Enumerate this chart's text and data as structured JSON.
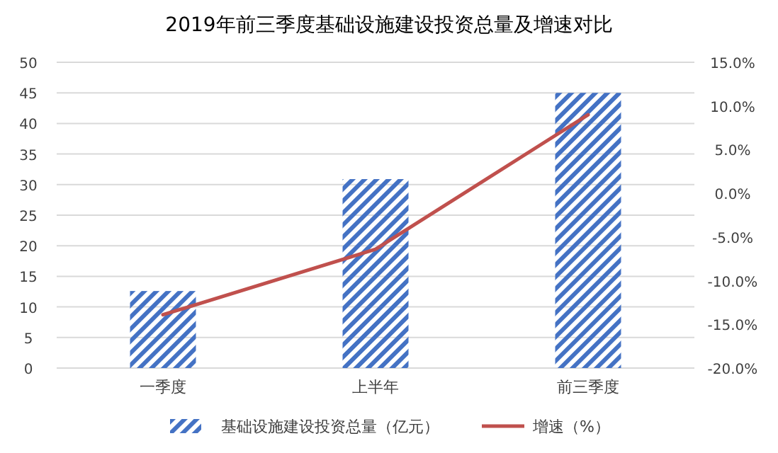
{
  "chart_data": {
    "type": "bar",
    "title": "2019年前三季度基础设施建设投资总量及增速对比",
    "categories": [
      "一季度",
      "上半年",
      "前三季度"
    ],
    "series": [
      {
        "name": "基础设施建设投资总量（亿元）",
        "color": "#4472c4",
        "values": [
          12.6,
          30.9,
          45.0
        ]
      },
      {
        "name": "增速（%）",
        "type": "line",
        "axis": "y2",
        "color": "#c0504d",
        "values": [
          -13.9,
          -6.4,
          9.0
        ]
      }
    ],
    "ylim": [
      0,
      50
    ],
    "yticks": [
      0,
      5,
      10,
      15,
      20,
      25,
      30,
      35,
      40,
      45,
      50
    ],
    "y2lim": [
      -20,
      15
    ],
    "y2ticks": [
      {
        "value": -20,
        "label": "-20.0%"
      },
      {
        "value": -15,
        "label": "-15.0%"
      },
      {
        "value": -10,
        "label": "-10.0%"
      },
      {
        "value": -5,
        "label": "-5.0%"
      },
      {
        "value": 0,
        "label": "0.0%"
      },
      {
        "value": 5,
        "label": "5.0%"
      },
      {
        "value": 10,
        "label": "10.0%"
      },
      {
        "value": 15,
        "label": "15.0%"
      }
    ],
    "grid": "y",
    "legend": "bottom",
    "marker": "none"
  }
}
